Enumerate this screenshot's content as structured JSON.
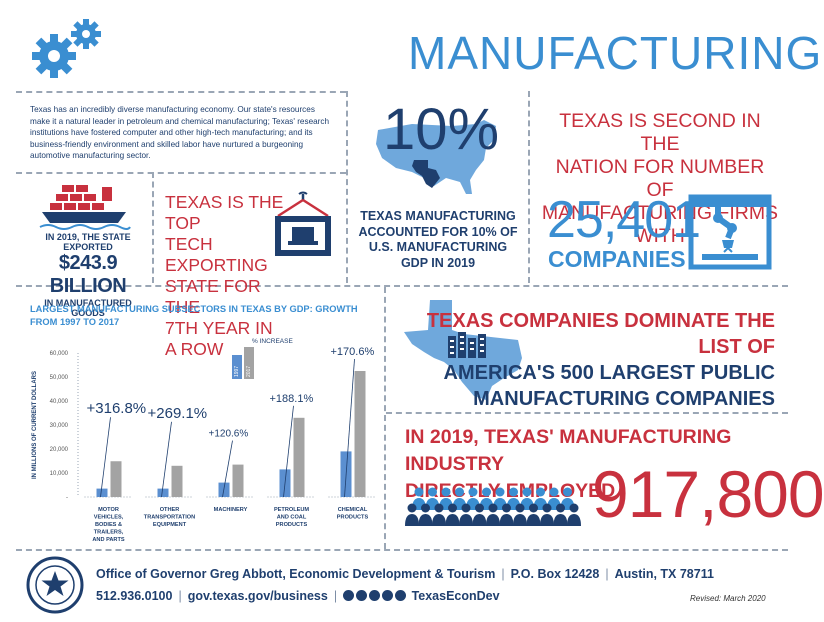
{
  "title": "MANUFACTURING",
  "intro": "Texas has an incredibly diverse manufacturing economy. Our state's resources make it a natural leader in petroleum and chemical manufacturing; Texas' research institutions have fostered computer and other high-tech manufacturing; and its business-friendly environment and skilled labor have nurtured a burgeoning automotive manufacturing sector.",
  "exported": {
    "line1": "IN 2019, THE STATE EXPORTED",
    "amount": "$243.9 BILLION",
    "line3": "IN MANUFACTURED GOODS"
  },
  "tech": [
    "TEXAS IS THE TOP",
    "TECH EXPORTING",
    "STATE FOR THE",
    "7TH YEAR IN A ROW"
  ],
  "gdp_share": {
    "percent": "10%",
    "lines": [
      "TEXAS MANUFACTURING",
      "ACCOUNTED FOR 10% OF",
      "U.S. MANUFACTURING",
      "GDP IN 2019"
    ]
  },
  "firms": {
    "lines": [
      "TEXAS IS SECOND IN THE",
      "NATION FOR NUMBER OF",
      "MANUFACTURING FIRMS WITH"
    ],
    "number": "25,401",
    "label": "COMPANIES"
  },
  "fortune": {
    "red": "TEXAS COMPANIES DOMINATE THE LIST OF",
    "blue1": "AMERICA'S 500 LARGEST PUBLIC",
    "blue2": "MANUFACTURING COMPANIES"
  },
  "employment": {
    "line1": "IN 2019, TEXAS' MANUFACTURING INDUSTRY",
    "line2": "DIRECTLY EMPLOYED",
    "number": "917,800"
  },
  "footer": {
    "office": "Office of Governor Greg Abbott, Economic Development & Tourism",
    "box": "P.O. Box 12428",
    "city": "Austin, TX 78711",
    "phone": "512.936.0100",
    "web": "gov.texas.gov/business",
    "social": "TexasEconDev",
    "revised": "Revised: March 2020"
  },
  "colors": {
    "navy": "#1f3f6e",
    "blue": "#3a8ed1",
    "red": "#c8313e",
    "gray": "#a3a3a3",
    "lightblue": "#6fa8dc"
  },
  "chart_data": {
    "type": "bar",
    "title": "LARGEST MANUFACTURING SUBSECTORS IN TEXAS BY GDP: GROWTH FROM 1997 TO 2017",
    "ylabel": "IN MILLIONS OF CURRENT DOLLARS",
    "ylim": [
      0,
      60000
    ],
    "yticks": [
      "60,000",
      "50,000",
      "40,000",
      "30,000",
      "20,000",
      "10,000",
      "-"
    ],
    "legend_title": "% INCREASE",
    "series": [
      {
        "name": "1997",
        "color": "#5b8fd0",
        "values": [
          3500,
          3500,
          6000,
          11500,
          19000
        ]
      },
      {
        "name": "2017",
        "color": "#a3a3a3",
        "values": [
          14900,
          13000,
          13500,
          33000,
          52500
        ]
      }
    ],
    "categories": [
      [
        "MOTOR",
        "VEHICLES,",
        "BODIES &",
        "TRAILERS,",
        "AND PARTS"
      ],
      [
        "OTHER",
        "TRANSPORTATION",
        "EQUIPMENT"
      ],
      [
        "MACHINERY"
      ],
      [
        "PETROLEUM",
        "AND COAL",
        "PRODUCTS"
      ],
      [
        "CHEMICAL",
        "PRODUCTS"
      ]
    ],
    "increase_labels": [
      "+316.8%",
      "+269.1%",
      "+120.6%",
      "+188.1%",
      "+170.6%"
    ]
  }
}
